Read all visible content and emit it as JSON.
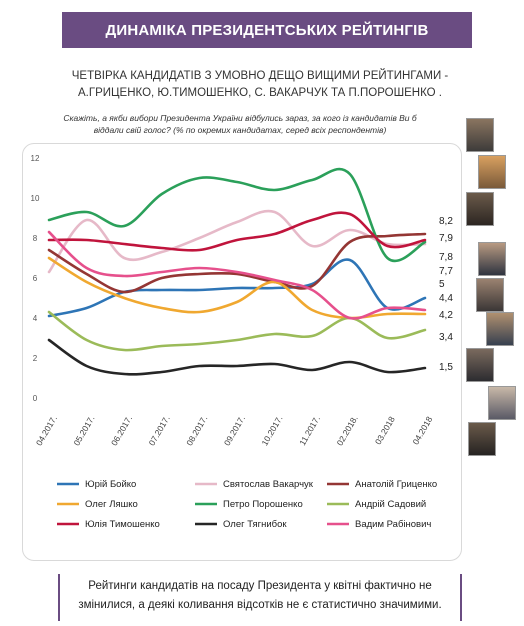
{
  "header": {
    "title": "ДИНАМІКА ПРЕЗИДЕНТСЬКИХ РЕЙТИНГІВ"
  },
  "subtitle_line1": "ЧЕТВІРКА КАНДИДАТІВ З УМОВНО ДЕЩО ВИЩИМИ РЕЙТИНГАМИ -",
  "subtitle_line2": "А.ГРИЦЕНКО, Ю.ТИМОШЕНКО, С. ВАКАРЧУК ТА П.ПОРОШЕНКО .",
  "question_line1": "Скажіть, а якби вибори Президента України відбулись зараз, за кого із кандидатів Ви б",
  "question_line2": "віддали свій голос?  (%  по окремих кандидатах, серед всіх респондентів)",
  "footer_line1": "Рейтинги кандидатів на посаду Президента у квітні фактично не",
  "footer_line2": "змінилися, а деякі коливання відсотків не є статистично значимими.",
  "chart_data": {
    "type": "line",
    "x": [
      "04.2017.",
      "05.2017.",
      "06.2017.",
      "07.2017.",
      "08.2017.",
      "09.2017.",
      "10.2017.",
      "11.2017.",
      "02.2018.",
      "03.2018",
      "04.2018"
    ],
    "ylim": [
      0,
      12
    ],
    "yticks": [
      "0",
      "2",
      "4",
      "6",
      "8",
      "10",
      "12"
    ],
    "grid": false,
    "legend_position": "bottom",
    "end_labels": [
      "8,2",
      "7,9",
      "7,8",
      "7,7",
      "5",
      "4,4",
      "4,2",
      "3,4",
      "1,5"
    ],
    "series": [
      {
        "name": "Юрій Бойко",
        "color": "#2e75b6",
        "values": [
          4.1,
          4.5,
          5.3,
          5.4,
          5.4,
          5.5,
          5.5,
          5.7,
          6.9,
          4.5,
          5.0
        ]
      },
      {
        "name": "Святослав Вакарчук",
        "color": "#e6b9c8",
        "values": [
          6.3,
          8.9,
          7.0,
          7.3,
          8.0,
          8.8,
          9.3,
          7.6,
          8.4,
          7.7,
          7.7
        ]
      },
      {
        "name": "Анатолій Гриценко",
        "color": "#943634",
        "values": [
          7.4,
          6.2,
          5.3,
          6.0,
          6.2,
          6.2,
          5.8,
          5.6,
          7.8,
          8.1,
          8.2
        ]
      },
      {
        "name": "Олег Ляшко",
        "color": "#f0a830",
        "values": [
          7.0,
          5.8,
          5.0,
          4.5,
          4.3,
          4.8,
          5.8,
          4.4,
          4.0,
          4.2,
          4.2
        ]
      },
      {
        "name": "Петро Порошенко",
        "color": "#2ba05a",
        "values": [
          8.9,
          9.3,
          8.6,
          10.2,
          11.0,
          10.8,
          10.4,
          10.9,
          11.2,
          7.0,
          7.8
        ]
      },
      {
        "name": "Андрій Садовий",
        "color": "#9bbb59",
        "values": [
          4.3,
          2.9,
          2.4,
          2.6,
          2.7,
          2.9,
          3.2,
          3.1,
          4.0,
          3.0,
          3.4
        ]
      },
      {
        "name": "Юлія Тимошенко",
        "color": "#c0143c",
        "values": [
          7.9,
          7.9,
          7.7,
          7.5,
          7.4,
          7.9,
          8.2,
          8.9,
          9.2,
          7.6,
          7.9
        ]
      },
      {
        "name": "Олег Тягнибок",
        "color": "#262626",
        "values": [
          2.9,
          1.6,
          1.2,
          1.3,
          1.6,
          1.6,
          1.7,
          1.4,
          1.8,
          1.3,
          1.5
        ]
      },
      {
        "name": "Вадим Рабінович",
        "color": "#e6508c",
        "values": [
          8.3,
          6.5,
          6.1,
          6.3,
          6.5,
          6.3,
          5.9,
          5.4,
          4.0,
          4.5,
          4.4
        ]
      }
    ]
  }
}
